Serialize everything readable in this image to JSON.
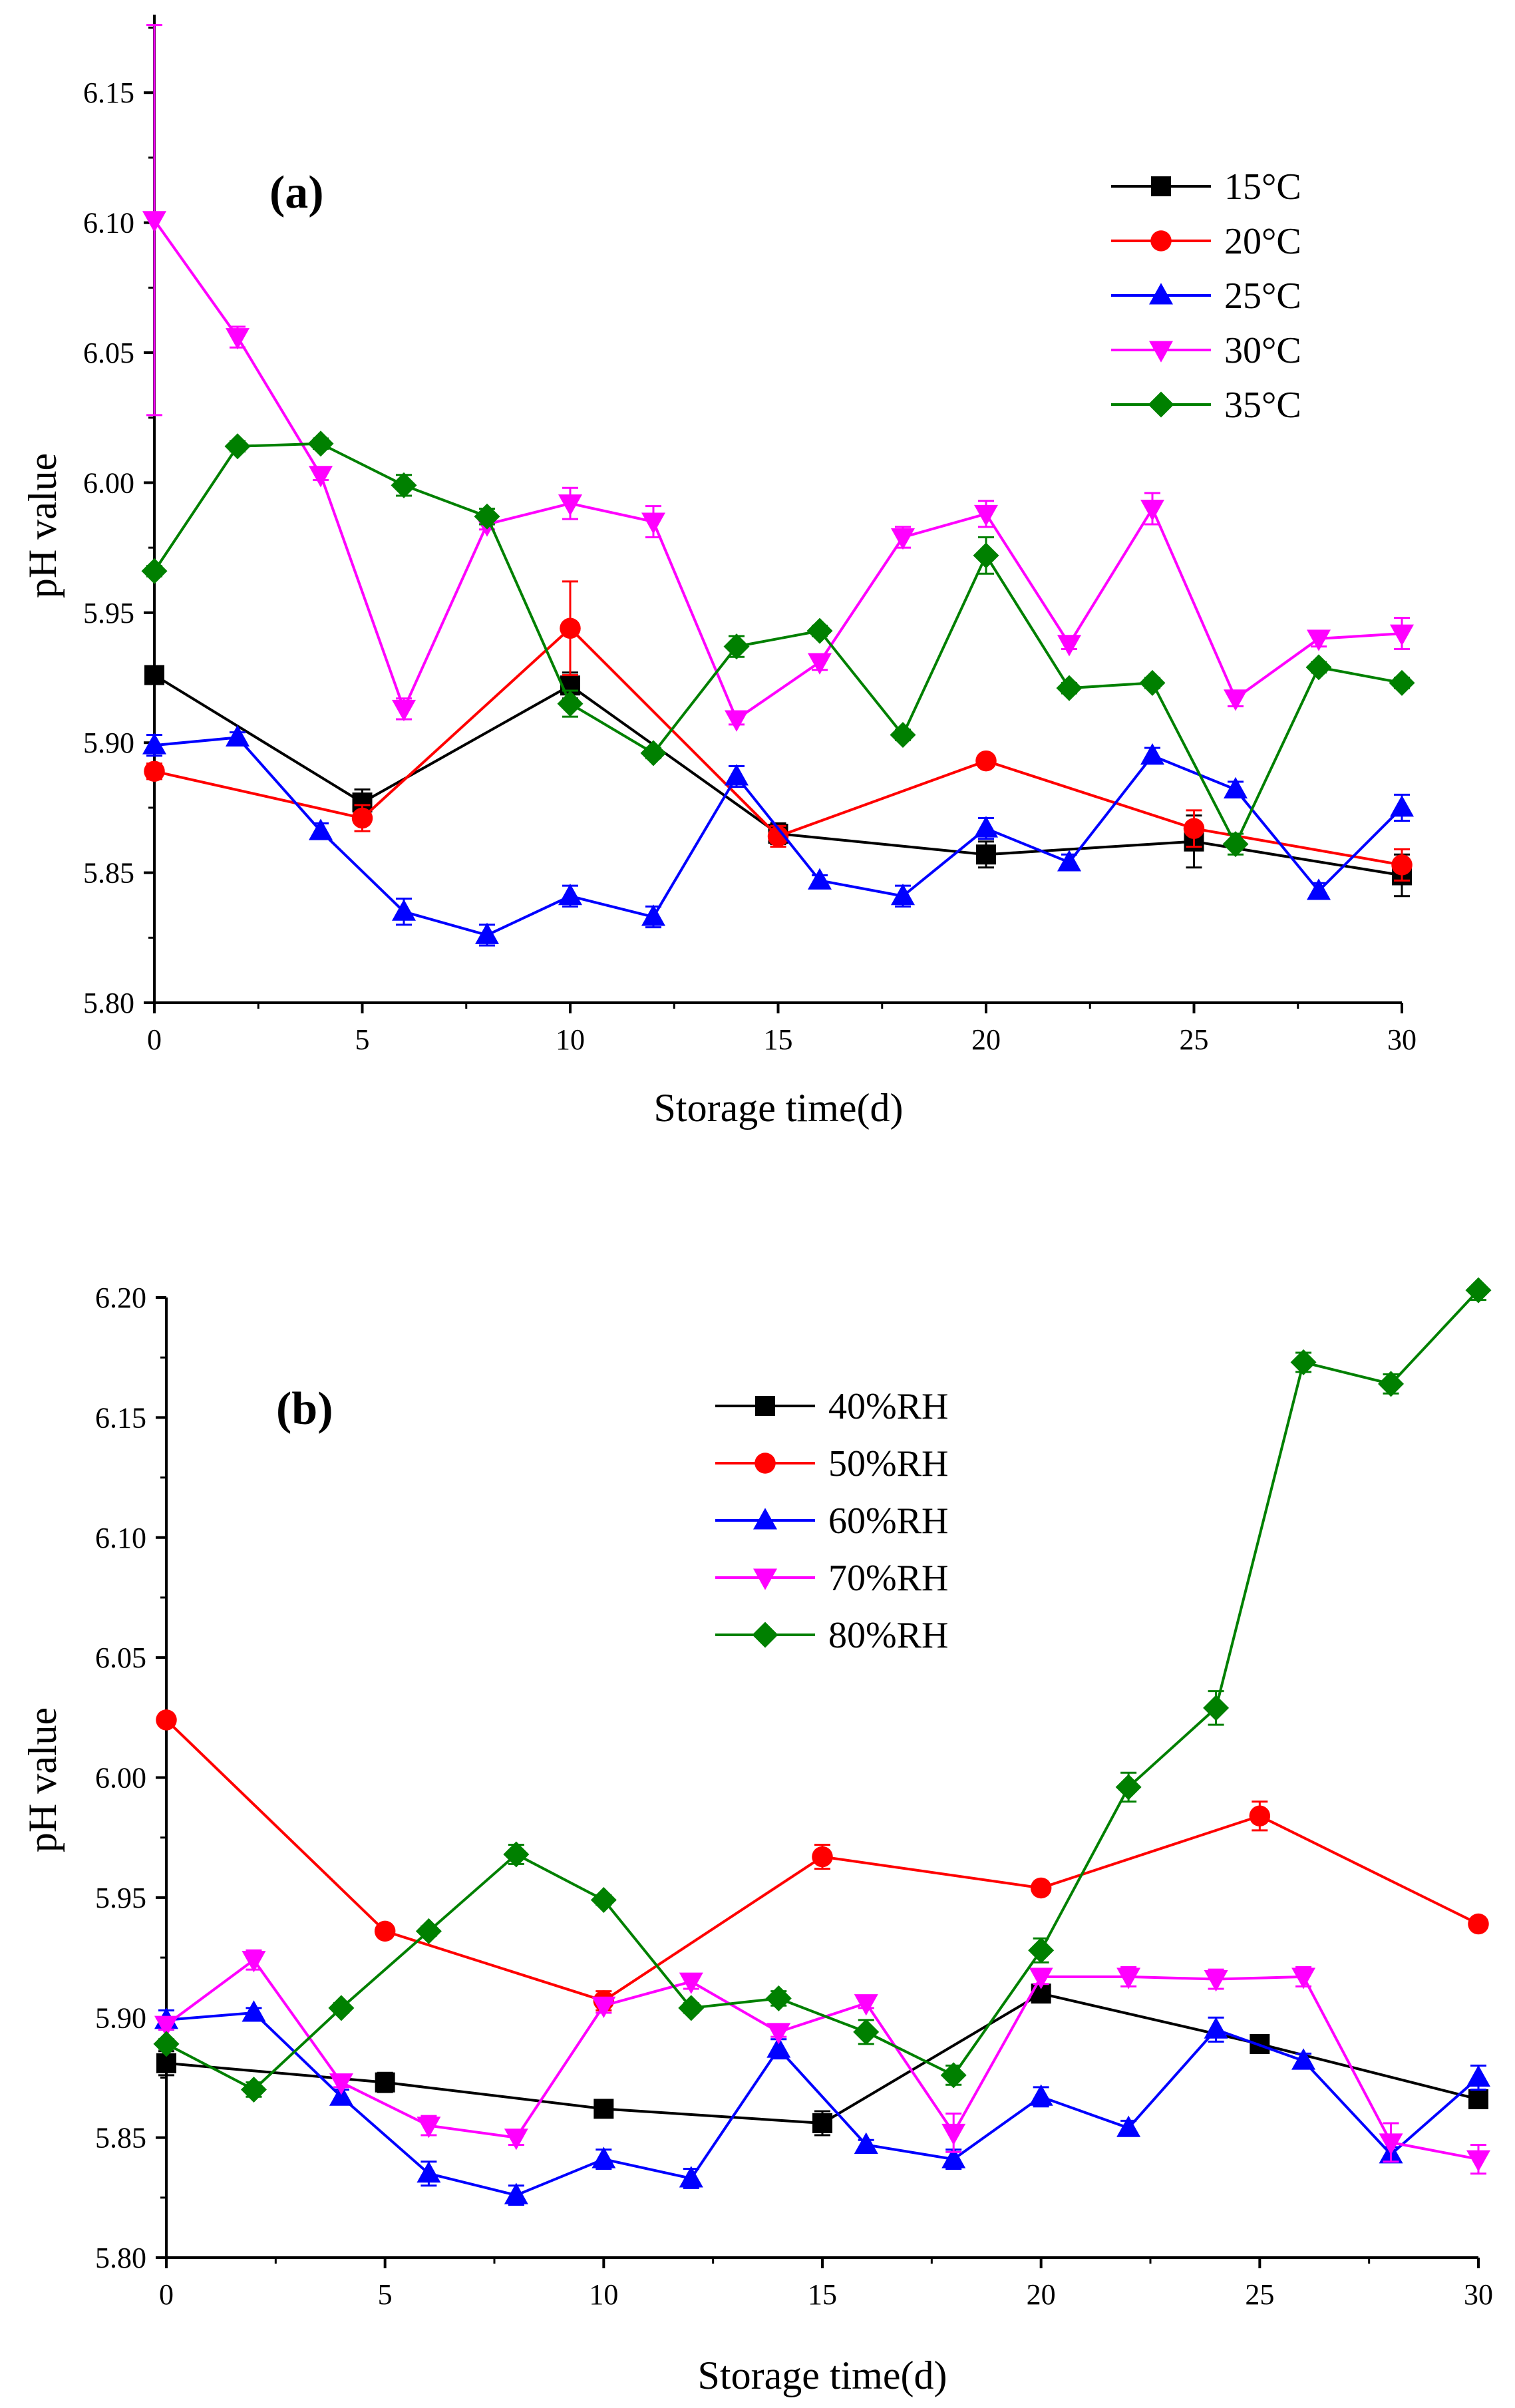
{
  "chart_data": [
    {
      "type": "line",
      "panel_label": "(a)",
      "xlabel": "Storage time(d)",
      "ylabel": "pH value",
      "xlim": [
        0,
        30
      ],
      "ylim": [
        5.8,
        6.18
      ],
      "xticks": [
        "0",
        "5",
        "10",
        "15",
        "20",
        "25",
        "30"
      ],
      "yticks": [
        "5.80",
        "5.85",
        "5.90",
        "5.95",
        "6.00",
        "6.05",
        "6.10",
        "6.15"
      ],
      "grid": false,
      "legend_position": "top-right",
      "series": [
        {
          "name": "15°C",
          "color": "#000000",
          "marker": "square",
          "x": [
            0,
            5,
            10,
            15,
            20,
            25,
            30
          ],
          "y": [
            5.926,
            5.877,
            5.922,
            5.865,
            5.857,
            5.862,
            5.849
          ],
          "err": [
            0.002,
            0.005,
            0.005,
            0.004,
            0.005,
            0.01,
            0.008
          ]
        },
        {
          "name": "20°C",
          "color": "#ff0000",
          "marker": "circle",
          "x": [
            0,
            5,
            10,
            15,
            20,
            25,
            30
          ],
          "y": [
            5.889,
            5.871,
            5.944,
            5.864,
            5.893,
            5.867,
            5.853
          ],
          "err": [
            0.003,
            0.005,
            0.018,
            0.004,
            0.002,
            0.007,
            0.006
          ]
        },
        {
          "name": "25°C",
          "color": "#0000ff",
          "marker": "triangle-up",
          "x": [
            0,
            2,
            4,
            6,
            8,
            10,
            12,
            14,
            16,
            18,
            20,
            22,
            24,
            26,
            28,
            30
          ],
          "y": [
            5.899,
            5.902,
            5.866,
            5.835,
            5.826,
            5.841,
            5.833,
            5.887,
            5.847,
            5.841,
            5.867,
            5.854,
            5.895,
            5.882,
            5.843,
            5.875
          ],
          "err": [
            0.004,
            0.002,
            0.003,
            0.005,
            0.004,
            0.004,
            0.004,
            0.004,
            0.002,
            0.004,
            0.004,
            0.003,
            0.003,
            0.003,
            0.003,
            0.005
          ]
        },
        {
          "name": "30°C",
          "color": "#ff00ff",
          "marker": "triangle-down",
          "x": [
            0,
            2,
            4,
            6,
            8,
            10,
            12,
            14,
            16,
            18,
            20,
            22,
            24,
            26,
            28,
            30
          ],
          "y": [
            6.101,
            6.056,
            6.003,
            5.913,
            5.984,
            5.992,
            5.985,
            5.909,
            5.931,
            5.979,
            5.988,
            5.938,
            5.99,
            5.917,
            5.94,
            5.942
          ],
          "err": [
            0.075,
            0.004,
            0.002,
            0.004,
            0.002,
            0.006,
            0.006,
            0.002,
            0.003,
            0.004,
            0.005,
            0.002,
            0.006,
            0.003,
            0.003,
            0.006
          ]
        },
        {
          "name": "35°C",
          "color": "#008000",
          "marker": "diamond",
          "x": [
            0,
            2,
            4,
            6,
            8,
            10,
            12,
            14,
            16,
            18,
            20,
            22,
            24,
            26,
            28,
            30
          ],
          "y": [
            5.966,
            6.014,
            6.015,
            5.999,
            5.987,
            5.915,
            5.896,
            5.937,
            5.943,
            5.903,
            5.972,
            5.921,
            5.923,
            5.861,
            5.929,
            5.923
          ],
          "err": [
            0.002,
            0.002,
            0.002,
            0.004,
            0.003,
            0.005,
            0.002,
            0.004,
            0.002,
            0.002,
            0.007,
            0.002,
            0.002,
            0.004,
            0.002,
            0.002
          ]
        }
      ]
    },
    {
      "type": "line",
      "panel_label": "(b)",
      "xlabel": "Storage time(d)",
      "ylabel": "pH value",
      "xlim": [
        0,
        30
      ],
      "ylim": [
        5.8,
        6.2
      ],
      "xticks": [
        "0",
        "5",
        "10",
        "15",
        "20",
        "25",
        "30"
      ],
      "yticks": [
        "5.80",
        "5.85",
        "5.90",
        "5.95",
        "6.00",
        "6.05",
        "6.10",
        "6.15",
        "6.20"
      ],
      "grid": false,
      "legend_position": "top-center",
      "series": [
        {
          "name": "40%RH",
          "color": "#000000",
          "marker": "square",
          "x": [
            0,
            5,
            10,
            15,
            20,
            25,
            30
          ],
          "y": [
            5.881,
            5.873,
            5.862,
            5.856,
            5.91,
            5.889,
            5.866
          ],
          "err": [
            0.005,
            0.004,
            0.002,
            0.005,
            0.003,
            0.003,
            0.002
          ]
        },
        {
          "name": "50%RH",
          "color": "#ff0000",
          "marker": "circle",
          "x": [
            0,
            5,
            10,
            15,
            20,
            25,
            30
          ],
          "y": [
            6.024,
            5.936,
            5.907,
            5.967,
            5.954,
            5.984,
            5.939
          ],
          "err": [
            0.002,
            0.002,
            0.004,
            0.005,
            0.002,
            0.006,
            0.002
          ]
        },
        {
          "name": "60%RH",
          "color": "#0000ff",
          "marker": "triangle-up",
          "x": [
            0,
            2,
            4,
            6,
            8,
            10,
            12,
            14,
            16,
            18,
            20,
            22,
            24,
            26,
            28,
            30
          ],
          "y": [
            5.899,
            5.902,
            5.867,
            5.835,
            5.826,
            5.841,
            5.833,
            5.887,
            5.847,
            5.841,
            5.867,
            5.854,
            5.895,
            5.882,
            5.843,
            5.875
          ],
          "err": [
            0.004,
            0.002,
            0.003,
            0.005,
            0.004,
            0.004,
            0.004,
            0.004,
            0.002,
            0.004,
            0.004,
            0.003,
            0.005,
            0.003,
            0.003,
            0.005
          ]
        },
        {
          "name": "70%RH",
          "color": "#ff00ff",
          "marker": "triangle-down",
          "x": [
            0,
            2,
            4,
            6,
            8,
            10,
            12,
            14,
            16,
            18,
            20,
            22,
            24,
            26,
            28,
            30
          ],
          "y": [
            5.897,
            5.924,
            5.873,
            5.855,
            5.85,
            5.905,
            5.915,
            5.894,
            5.906,
            5.852,
            5.917,
            5.917,
            5.916,
            5.917,
            5.848,
            5.841
          ],
          "err": [
            0.002,
            0.004,
            0.002,
            0.004,
            0.003,
            0.003,
            0.003,
            0.002,
            0.002,
            0.008,
            0.003,
            0.004,
            0.004,
            0.004,
            0.008,
            0.006
          ]
        },
        {
          "name": "80%RH",
          "color": "#008000",
          "marker": "diamond",
          "x": [
            0,
            2,
            4,
            6,
            8,
            10,
            12,
            14,
            16,
            18,
            20,
            22,
            24,
            26,
            28,
            30
          ],
          "y": [
            5.889,
            5.87,
            5.904,
            5.936,
            5.968,
            5.949,
            5.904,
            5.908,
            5.894,
            5.876,
            5.928,
            5.996,
            6.029,
            6.173,
            6.164,
            6.203
          ],
          "err": [
            0.002,
            0.003,
            0.002,
            0.002,
            0.004,
            0.002,
            0.002,
            0.003,
            0.005,
            0.004,
            0.005,
            0.006,
            0.007,
            0.004,
            0.004,
            0.004
          ]
        }
      ]
    }
  ]
}
